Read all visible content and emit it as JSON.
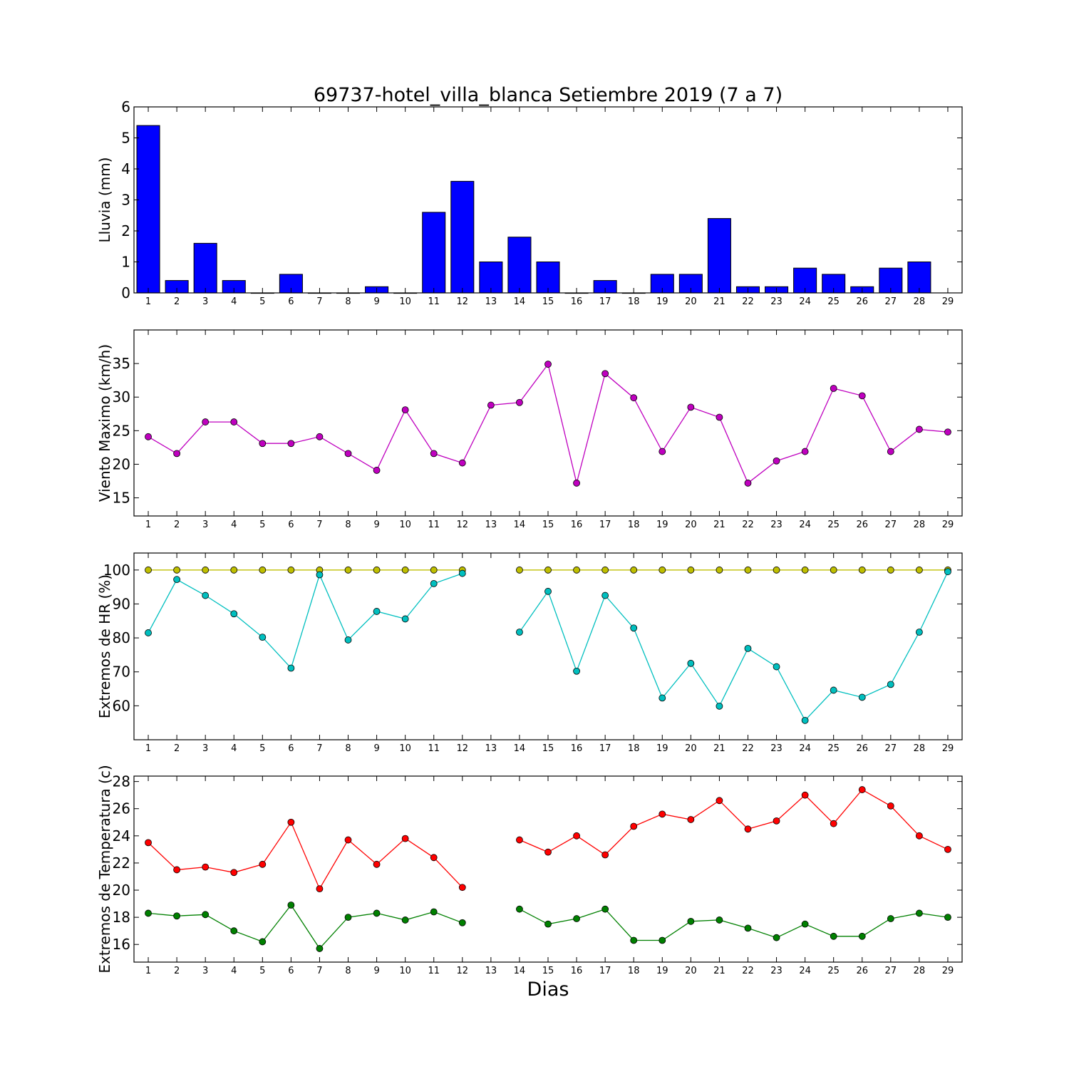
{
  "title": "69737-hotel_villa_blanca Setiembre 2019  (7 a 7)",
  "xlabel": "Dias",
  "days": [
    1,
    2,
    3,
    4,
    5,
    6,
    7,
    8,
    9,
    10,
    11,
    12,
    13,
    14,
    15,
    16,
    17,
    18,
    19,
    20,
    21,
    22,
    23,
    24,
    25,
    26,
    27,
    28,
    29
  ],
  "colors": {
    "rain": "#0000ff",
    "wind": "#bf00bf",
    "hr_max": "#bfbf00",
    "hr_min": "#00bfbf",
    "temp_max": "#ff0000",
    "temp_min": "#008000"
  },
  "chart_data": [
    {
      "type": "bar",
      "ylabel": "Lluvia (mm)",
      "ylim": [
        0,
        6
      ],
      "yticks": [
        0,
        1,
        2,
        3,
        4,
        5,
        6
      ],
      "x": [
        1,
        2,
        3,
        4,
        5,
        6,
        7,
        8,
        9,
        10,
        11,
        12,
        13,
        14,
        15,
        16,
        17,
        18,
        19,
        20,
        21,
        22,
        23,
        24,
        25,
        26,
        27,
        28,
        29
      ],
      "series": [
        {
          "color_key": "rain",
          "values": [
            5.4,
            0.4,
            1.6,
            0.4,
            0,
            0.6,
            0,
            0,
            0.2,
            0,
            2.6,
            3.6,
            1.0,
            1.8,
            1.0,
            0,
            0.4,
            0,
            0.6,
            0.6,
            2.4,
            0.2,
            0.2,
            0.8,
            0.6,
            0.2,
            0.8,
            1.0,
            null
          ]
        }
      ]
    },
    {
      "type": "line",
      "ylabel": "Viento Maximo (km/h)",
      "ylim": [
        12.3,
        40
      ],
      "yticks": [
        15,
        20,
        25,
        30,
        35
      ],
      "x": [
        1,
        2,
        3,
        4,
        5,
        6,
        7,
        8,
        9,
        10,
        11,
        12,
        13,
        14,
        15,
        16,
        17,
        18,
        19,
        20,
        21,
        22,
        23,
        24,
        25,
        26,
        27,
        28,
        29
      ],
      "series": [
        {
          "color_key": "wind",
          "values": [
            24.1,
            21.6,
            26.3,
            26.3,
            23.1,
            23.1,
            24.1,
            21.6,
            19.1,
            28.1,
            21.6,
            20.2,
            28.8,
            29.2,
            34.9,
            17.2,
            33.5,
            29.9,
            21.9,
            28.5,
            27.0,
            17.2,
            20.5,
            21.9,
            31.3,
            30.2,
            21.9,
            25.2,
            24.8
          ]
        }
      ]
    },
    {
      "type": "line",
      "ylabel": "Extremos de HR (%)",
      "ylim": [
        50,
        105
      ],
      "yticks": [
        60,
        70,
        80,
        90,
        100
      ],
      "x": [
        1,
        2,
        3,
        4,
        5,
        6,
        7,
        8,
        9,
        10,
        11,
        12,
        13,
        14,
        15,
        16,
        17,
        18,
        19,
        20,
        21,
        22,
        23,
        24,
        25,
        26,
        27,
        28,
        29
      ],
      "series": [
        {
          "color_key": "hr_max",
          "values": [
            100,
            100,
            100,
            100,
            100,
            100,
            100,
            100,
            100,
            100,
            100,
            100,
            null,
            100,
            100,
            100,
            100,
            100,
            100,
            100,
            100,
            100,
            100,
            100,
            100,
            100,
            100,
            100,
            100
          ]
        },
        {
          "color_key": "hr_min",
          "values": [
            81.5,
            97.2,
            92.5,
            87.1,
            80.2,
            71.1,
            98.6,
            79.4,
            87.8,
            85.6,
            96.0,
            99.0,
            null,
            81.7,
            93.7,
            70.2,
            92.5,
            82.9,
            62.3,
            72.5,
            59.9,
            76.9,
            71.5,
            55.7,
            64.6,
            62.5,
            66.3,
            81.7,
            99.5
          ]
        }
      ]
    },
    {
      "type": "line",
      "ylabel": "Extremos de Temperatura (c)",
      "ylim": [
        14.7,
        28.4
      ],
      "yticks": [
        16,
        18,
        20,
        22,
        24,
        26,
        28
      ],
      "x": [
        1,
        2,
        3,
        4,
        5,
        6,
        7,
        8,
        9,
        10,
        11,
        12,
        13,
        14,
        15,
        16,
        17,
        18,
        19,
        20,
        21,
        22,
        23,
        24,
        25,
        26,
        27,
        28,
        29
      ],
      "series": [
        {
          "color_key": "temp_max",
          "values": [
            23.5,
            21.5,
            21.7,
            21.3,
            21.9,
            25.0,
            20.1,
            23.7,
            21.9,
            23.8,
            22.4,
            20.2,
            null,
            23.7,
            22.8,
            24.0,
            22.6,
            24.7,
            25.6,
            25.2,
            26.6,
            24.5,
            25.1,
            27.0,
            24.9,
            27.4,
            26.2,
            24.0,
            23.0
          ]
        },
        {
          "color_key": "temp_min",
          "values": [
            18.3,
            18.1,
            18.2,
            17.0,
            16.2,
            18.9,
            15.7,
            18.0,
            18.3,
            17.8,
            18.4,
            17.6,
            null,
            18.6,
            17.5,
            17.9,
            18.6,
            16.3,
            16.3,
            17.7,
            17.8,
            17.2,
            16.5,
            17.5,
            16.6,
            16.6,
            17.9,
            18.3,
            18.0
          ]
        }
      ]
    }
  ]
}
